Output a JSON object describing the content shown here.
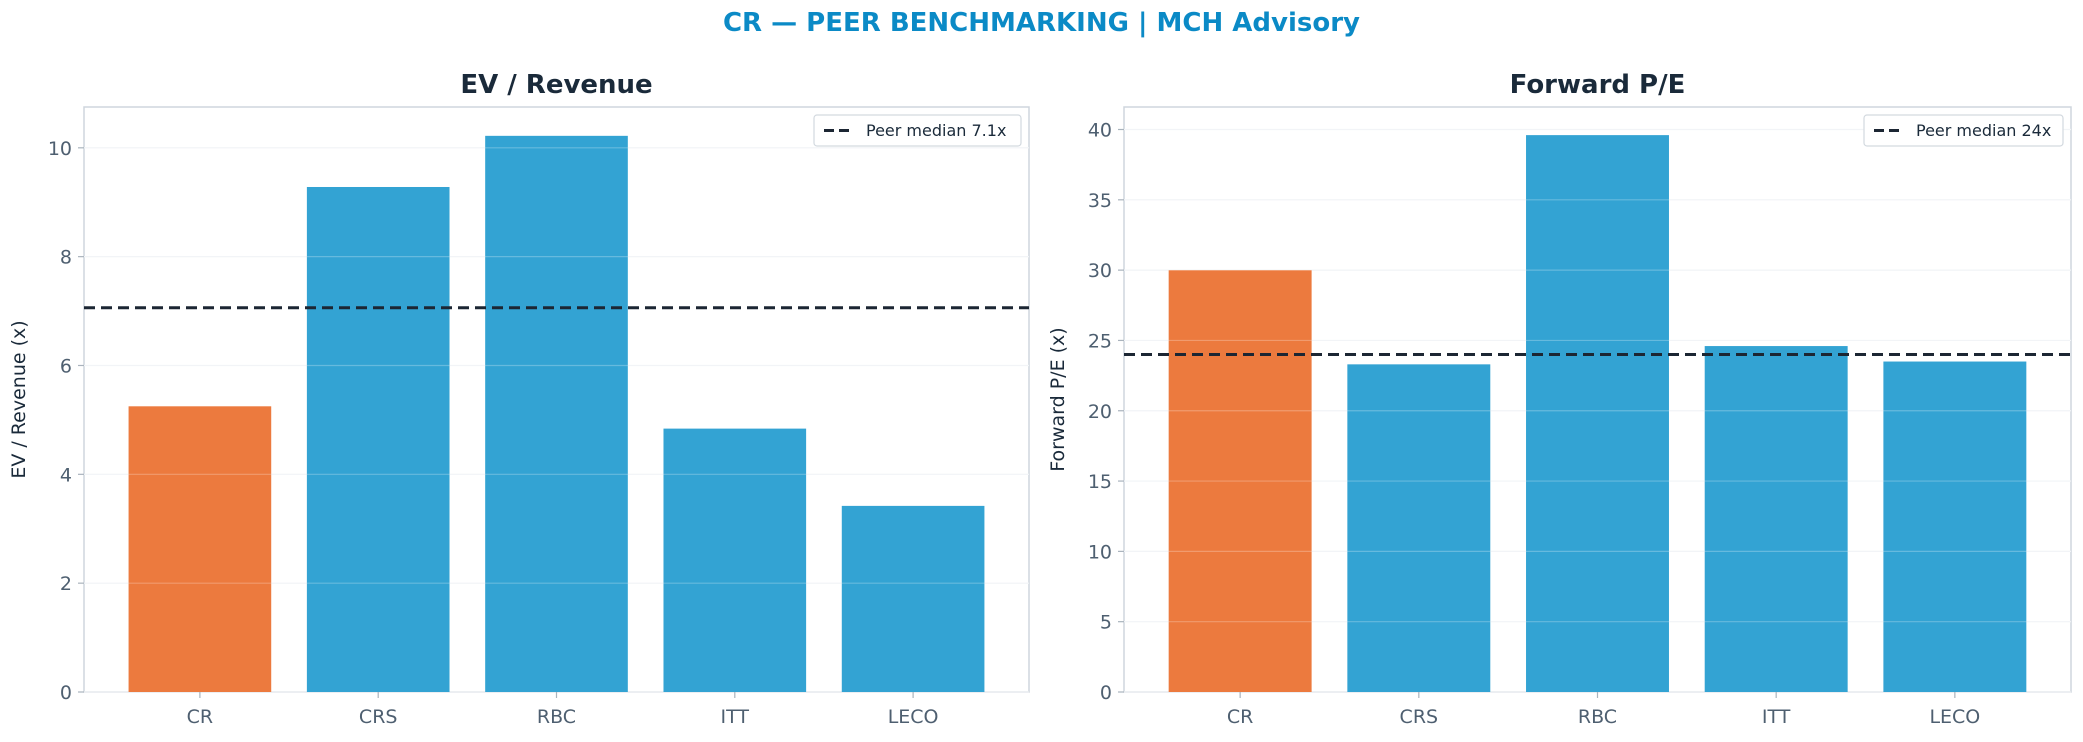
{
  "suptitle": "CR — PEER BENCHMARKING | MCH Advisory",
  "colors": {
    "highlight": "#ec7a3e",
    "peer": "#33a3d3",
    "median_line": "#1c2633",
    "title": "#1a2a3a",
    "suptitle": "#0b8ac6"
  },
  "chart_data": [
    {
      "type": "bar",
      "title": "EV / Revenue",
      "ylabel": "EV / Revenue (x)",
      "categories": [
        "CR",
        "CRS",
        "RBC",
        "ITT",
        "LECO"
      ],
      "values": [
        5.25,
        9.28,
        10.22,
        4.84,
        3.42
      ],
      "highlight": "CR",
      "ylim": [
        0,
        10.75
      ],
      "yticks": [
        0,
        2,
        4,
        6,
        8,
        10
      ],
      "reference_line": {
        "value": 7.06,
        "label": "Peer median 7.1x",
        "style": "dashed"
      },
      "legend": "top-right",
      "grid": true
    },
    {
      "type": "bar",
      "title": "Forward P/E",
      "ylabel": "Forward P/E (x)",
      "categories": [
        "CR",
        "CRS",
        "RBC",
        "ITT",
        "LECO"
      ],
      "values": [
        30.0,
        23.3,
        39.6,
        24.6,
        23.5
      ],
      "highlight": "CR",
      "ylim": [
        0,
        41.6
      ],
      "yticks": [
        0,
        5,
        10,
        15,
        20,
        25,
        30,
        35,
        40
      ],
      "reference_line": {
        "value": 24.0,
        "label": "Peer median 24x",
        "style": "dashed"
      },
      "legend": "top-right",
      "grid": true
    }
  ]
}
